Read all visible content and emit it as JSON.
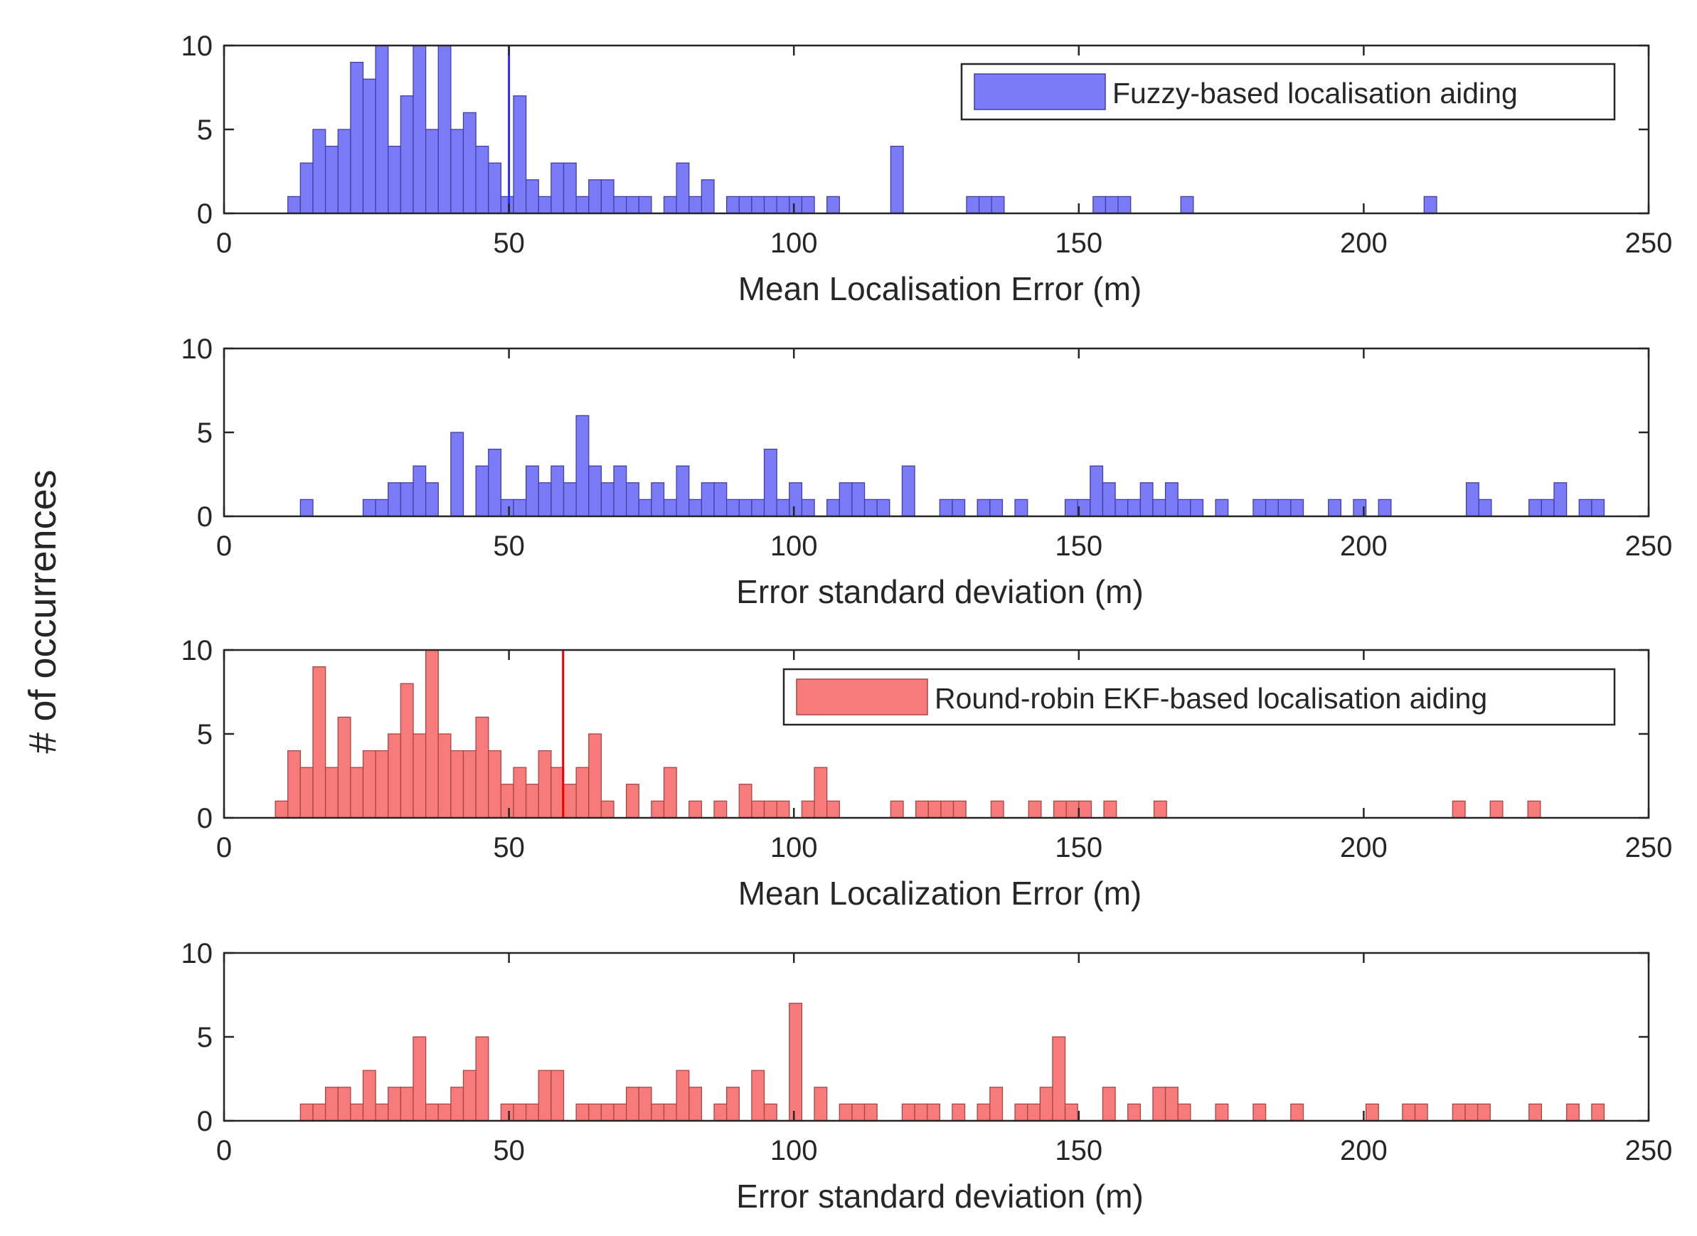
{
  "figure": {
    "ylabel": "# of occurrences"
  },
  "colors": {
    "blue_fill": "#7b7bf7",
    "blue_edge": "#3f3fa8",
    "red_fill": "#f77b7b",
    "red_edge": "#a84545",
    "blue_mean_line": "#2b2bff",
    "red_mean_line": "#ee0000",
    "axis": "#262626"
  },
  "chart_data": [
    {
      "type": "bar",
      "subtype": "histogram",
      "color": "blue",
      "xlabel": "Mean Localisation Error (m)",
      "xlim": [
        0,
        250
      ],
      "ylim": [
        0,
        10
      ],
      "xticks": [
        0,
        50,
        100,
        150,
        200,
        250
      ],
      "yticks": [
        0,
        5,
        10
      ],
      "legend": "Fuzzy-based localisation aiding",
      "legend_position": "top-right",
      "mean_line": 50,
      "bin_width": 2.2,
      "bins": [
        [
          11.2,
          1
        ],
        [
          13.4,
          3
        ],
        [
          15.6,
          5
        ],
        [
          17.8,
          4
        ],
        [
          20.0,
          5
        ],
        [
          22.2,
          9
        ],
        [
          24.4,
          8
        ],
        [
          26.6,
          10
        ],
        [
          28.8,
          4
        ],
        [
          31.0,
          7
        ],
        [
          33.2,
          10
        ],
        [
          35.4,
          5
        ],
        [
          37.6,
          10
        ],
        [
          39.8,
          5
        ],
        [
          42.0,
          6
        ],
        [
          44.2,
          4
        ],
        [
          46.4,
          3
        ],
        [
          48.6,
          1
        ],
        [
          50.8,
          7
        ],
        [
          53.0,
          2
        ],
        [
          55.2,
          1
        ],
        [
          57.4,
          3
        ],
        [
          59.6,
          3
        ],
        [
          61.8,
          1
        ],
        [
          64.0,
          2
        ],
        [
          66.2,
          2
        ],
        [
          68.4,
          1
        ],
        [
          70.6,
          1
        ],
        [
          72.8,
          1
        ],
        [
          77.2,
          1
        ],
        [
          79.4,
          3
        ],
        [
          81.6,
          1
        ],
        [
          83.8,
          2
        ],
        [
          88.2,
          1
        ],
        [
          90.4,
          1
        ],
        [
          92.6,
          1
        ],
        [
          94.8,
          1
        ],
        [
          97.0,
          1
        ],
        [
          99.2,
          1
        ],
        [
          101.4,
          1
        ],
        [
          105.8,
          1
        ],
        [
          117.0,
          4
        ],
        [
          130.3,
          1
        ],
        [
          132.5,
          1
        ],
        [
          134.7,
          1
        ],
        [
          152.5,
          1
        ],
        [
          154.7,
          1
        ],
        [
          156.9,
          1
        ],
        [
          167.9,
          1
        ],
        [
          210.6,
          1
        ]
      ]
    },
    {
      "type": "bar",
      "subtype": "histogram",
      "color": "blue",
      "xlabel": "Error standard deviation (m)",
      "xlim": [
        0,
        250
      ],
      "ylim": [
        0,
        10
      ],
      "xticks": [
        0,
        50,
        100,
        150,
        200,
        250
      ],
      "yticks": [
        0,
        5,
        10
      ],
      "bin_width": 2.2,
      "bins": [
        [
          13.4,
          1
        ],
        [
          24.4,
          1
        ],
        [
          26.6,
          1
        ],
        [
          28.8,
          2
        ],
        [
          31.0,
          2
        ],
        [
          33.2,
          3
        ],
        [
          35.4,
          2
        ],
        [
          39.8,
          5
        ],
        [
          44.2,
          3
        ],
        [
          46.4,
          4
        ],
        [
          48.6,
          1
        ],
        [
          50.8,
          1
        ],
        [
          53.0,
          3
        ],
        [
          55.2,
          2
        ],
        [
          57.4,
          3
        ],
        [
          59.6,
          2
        ],
        [
          61.8,
          6
        ],
        [
          64.0,
          3
        ],
        [
          66.2,
          2
        ],
        [
          68.4,
          3
        ],
        [
          70.6,
          2
        ],
        [
          72.8,
          1
        ],
        [
          75.0,
          2
        ],
        [
          77.2,
          1
        ],
        [
          79.4,
          3
        ],
        [
          81.6,
          1
        ],
        [
          83.8,
          2
        ],
        [
          86.0,
          2
        ],
        [
          88.2,
          1
        ],
        [
          90.4,
          1
        ],
        [
          92.6,
          1
        ],
        [
          94.8,
          4
        ],
        [
          97.0,
          1
        ],
        [
          99.2,
          2
        ],
        [
          101.4,
          1
        ],
        [
          105.8,
          1
        ],
        [
          108.0,
          2
        ],
        [
          110.2,
          2
        ],
        [
          112.4,
          1
        ],
        [
          114.6,
          1
        ],
        [
          119.0,
          3
        ],
        [
          125.6,
          1
        ],
        [
          127.8,
          1
        ],
        [
          132.2,
          1
        ],
        [
          134.4,
          1
        ],
        [
          138.8,
          1
        ],
        [
          147.6,
          1
        ],
        [
          149.8,
          1
        ],
        [
          152.0,
          3
        ],
        [
          154.2,
          2
        ],
        [
          156.4,
          1
        ],
        [
          158.6,
          1
        ],
        [
          160.8,
          2
        ],
        [
          163.0,
          1
        ],
        [
          165.2,
          2
        ],
        [
          167.4,
          1
        ],
        [
          169.6,
          1
        ],
        [
          174.0,
          1
        ],
        [
          180.6,
          1
        ],
        [
          182.8,
          1
        ],
        [
          185.0,
          1
        ],
        [
          187.2,
          1
        ],
        [
          193.8,
          1
        ],
        [
          198.2,
          1
        ],
        [
          202.6,
          1
        ],
        [
          218.0,
          2
        ],
        [
          220.2,
          1
        ],
        [
          229.0,
          1
        ],
        [
          231.2,
          1
        ],
        [
          233.4,
          2
        ],
        [
          237.8,
          1
        ],
        [
          240.0,
          1
        ]
      ]
    },
    {
      "type": "bar",
      "subtype": "histogram",
      "color": "red",
      "xlabel": "Mean Localization Error (m)",
      "xlim": [
        0,
        250
      ],
      "ylim": [
        0,
        10
      ],
      "xticks": [
        0,
        50,
        100,
        150,
        200,
        250
      ],
      "yticks": [
        0,
        5,
        10
      ],
      "legend": "Round-robin EKF-based localisation aiding",
      "legend_position": "top-right",
      "mean_line": 59.5,
      "bin_width": 2.2,
      "bins": [
        [
          9.0,
          1
        ],
        [
          11.2,
          4
        ],
        [
          13.4,
          3
        ],
        [
          15.6,
          9
        ],
        [
          17.8,
          3
        ],
        [
          20.0,
          6
        ],
        [
          22.2,
          3
        ],
        [
          24.4,
          4
        ],
        [
          26.6,
          4
        ],
        [
          28.8,
          5
        ],
        [
          31.0,
          8
        ],
        [
          33.2,
          5
        ],
        [
          35.4,
          10
        ],
        [
          37.6,
          5
        ],
        [
          39.8,
          4
        ],
        [
          42.0,
          4
        ],
        [
          44.2,
          6
        ],
        [
          46.4,
          4
        ],
        [
          48.6,
          2
        ],
        [
          50.8,
          3
        ],
        [
          53.0,
          2
        ],
        [
          55.2,
          4
        ],
        [
          57.4,
          3
        ],
        [
          59.6,
          2
        ],
        [
          61.8,
          3
        ],
        [
          64.0,
          5
        ],
        [
          66.2,
          1
        ],
        [
          70.6,
          2
        ],
        [
          75.0,
          1
        ],
        [
          77.2,
          3
        ],
        [
          81.6,
          1
        ],
        [
          86.0,
          1
        ],
        [
          90.4,
          2
        ],
        [
          92.6,
          1
        ],
        [
          94.8,
          1
        ],
        [
          97.0,
          1
        ],
        [
          101.4,
          1
        ],
        [
          103.6,
          3
        ],
        [
          105.8,
          1
        ],
        [
          117.0,
          1
        ],
        [
          121.4,
          1
        ],
        [
          123.6,
          1
        ],
        [
          125.8,
          1
        ],
        [
          128.0,
          1
        ],
        [
          134.6,
          1
        ],
        [
          141.2,
          1
        ],
        [
          145.6,
          1
        ],
        [
          147.8,
          1
        ],
        [
          150.0,
          1
        ],
        [
          154.4,
          1
        ],
        [
          163.2,
          1
        ],
        [
          215.6,
          1
        ],
        [
          222.2,
          1
        ],
        [
          228.8,
          1
        ]
      ]
    },
    {
      "type": "bar",
      "subtype": "histogram",
      "color": "red",
      "xlabel": "Error standard deviation (m)",
      "xlim": [
        0,
        250
      ],
      "ylim": [
        0,
        10
      ],
      "xticks": [
        0,
        50,
        100,
        150,
        200,
        250
      ],
      "yticks": [
        0,
        5,
        10
      ],
      "bin_width": 2.2,
      "bins": [
        [
          13.4,
          1
        ],
        [
          15.6,
          1
        ],
        [
          17.8,
          2
        ],
        [
          20.0,
          2
        ],
        [
          22.2,
          1
        ],
        [
          24.4,
          3
        ],
        [
          26.6,
          1
        ],
        [
          28.8,
          2
        ],
        [
          31.0,
          2
        ],
        [
          33.2,
          5
        ],
        [
          35.4,
          1
        ],
        [
          37.6,
          1
        ],
        [
          39.8,
          2
        ],
        [
          42.0,
          3
        ],
        [
          44.2,
          5
        ],
        [
          48.6,
          1
        ],
        [
          50.8,
          1
        ],
        [
          53.0,
          1
        ],
        [
          55.2,
          3
        ],
        [
          57.4,
          3
        ],
        [
          61.8,
          1
        ],
        [
          64.0,
          1
        ],
        [
          66.2,
          1
        ],
        [
          68.4,
          1
        ],
        [
          70.6,
          2
        ],
        [
          72.8,
          2
        ],
        [
          75.0,
          1
        ],
        [
          77.2,
          1
        ],
        [
          79.4,
          3
        ],
        [
          81.6,
          2
        ],
        [
          86.0,
          1
        ],
        [
          88.2,
          2
        ],
        [
          92.6,
          3
        ],
        [
          94.8,
          1
        ],
        [
          99.2,
          7
        ],
        [
          103.6,
          2
        ],
        [
          108.0,
          1
        ],
        [
          110.2,
          1
        ],
        [
          112.4,
          1
        ],
        [
          119.0,
          1
        ],
        [
          121.2,
          1
        ],
        [
          123.4,
          1
        ],
        [
          127.8,
          1
        ],
        [
          132.2,
          1
        ],
        [
          134.4,
          2
        ],
        [
          138.8,
          1
        ],
        [
          141.0,
          1
        ],
        [
          143.2,
          2
        ],
        [
          145.4,
          5
        ],
        [
          147.6,
          1
        ],
        [
          154.2,
          2
        ],
        [
          158.6,
          1
        ],
        [
          163.0,
          2
        ],
        [
          165.2,
          2
        ],
        [
          167.4,
          1
        ],
        [
          174.0,
          1
        ],
        [
          180.6,
          1
        ],
        [
          187.2,
          1
        ],
        [
          200.4,
          1
        ],
        [
          206.8,
          1
        ],
        [
          209.0,
          1
        ],
        [
          215.6,
          1
        ],
        [
          217.8,
          1
        ],
        [
          220.0,
          1
        ],
        [
          229.0,
          1
        ],
        [
          235.6,
          1
        ],
        [
          240.0,
          1
        ]
      ]
    }
  ]
}
